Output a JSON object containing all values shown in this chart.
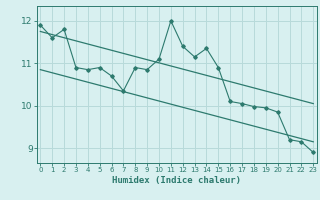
{
  "x": [
    0,
    1,
    2,
    3,
    4,
    5,
    6,
    7,
    8,
    9,
    10,
    11,
    12,
    13,
    14,
    15,
    16,
    17,
    18,
    19,
    20,
    21,
    22,
    23
  ],
  "y_data": [
    11.9,
    11.6,
    11.8,
    10.9,
    10.85,
    10.9,
    10.7,
    10.35,
    10.9,
    10.85,
    11.1,
    12.0,
    11.4,
    11.15,
    11.35,
    10.9,
    10.1,
    10.05,
    9.98,
    9.95,
    9.85,
    9.2,
    9.15,
    8.9
  ],
  "trend1_x": [
    0,
    23
  ],
  "trend1_y": [
    11.75,
    10.05
  ],
  "trend2_x": [
    0,
    23
  ],
  "trend2_y": [
    10.85,
    9.15
  ],
  "line_color": "#2d7a6e",
  "bg_color": "#d8f0f0",
  "grid_color": "#b8dada",
  "xlabel": "Humidex (Indice chaleur)",
  "yticks": [
    9,
    10,
    11,
    12
  ],
  "xticks": [
    0,
    1,
    2,
    3,
    4,
    5,
    6,
    7,
    8,
    9,
    10,
    11,
    12,
    13,
    14,
    15,
    16,
    17,
    18,
    19,
    20,
    21,
    22,
    23
  ],
  "ylim": [
    8.65,
    12.35
  ],
  "xlim": [
    -0.3,
    23.3
  ]
}
